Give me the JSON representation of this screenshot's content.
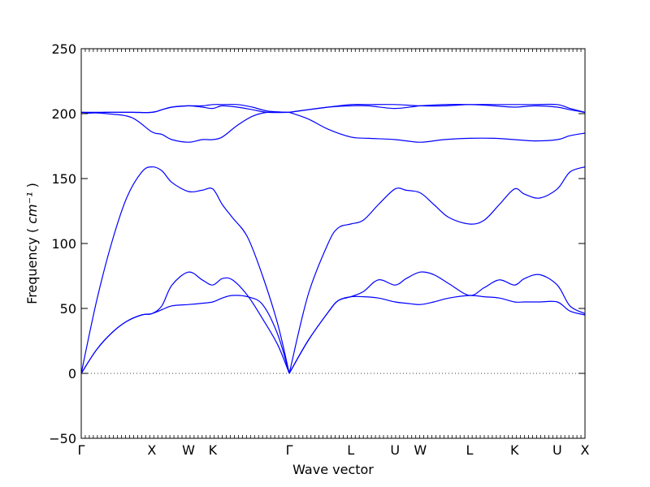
{
  "chart_data": {
    "type": "line",
    "xlabel": "Wave vector",
    "ylabel": "Frequency",
    "ylabel_unit": "cm⁻¹",
    "ylim": [
      -50,
      250
    ],
    "yticks": [
      -50,
      0,
      50,
      100,
      150,
      200,
      250
    ],
    "ytick_labels": [
      "−50",
      "0",
      "50",
      "100",
      "150",
      "200",
      "250"
    ],
    "xlim": [
      0,
      100
    ],
    "high_symmetry_points": [
      {
        "label": "Γ",
        "x": 0
      },
      {
        "label": "X",
        "x": 14.0
      },
      {
        "label": "W",
        "x": 21.3
      },
      {
        "label": "K",
        "x": 26.1
      },
      {
        "label": "Γ",
        "x": 41.3
      },
      {
        "label": "L",
        "x": 53.5
      },
      {
        "label": "U",
        "x": 62.3
      },
      {
        "label": "W",
        "x": 67.3
      },
      {
        "label": "L",
        "x": 77.1
      },
      {
        "label": "K",
        "x": 86.0
      },
      {
        "label": "U",
        "x": 94.5
      },
      {
        "label": "X",
        "x": 100
      }
    ],
    "zero_line": {
      "y": 0,
      "style": "dotted"
    },
    "line_color": "#0000ff",
    "grid": false,
    "series": [
      {
        "x": [
          0,
          3,
          6,
          9,
          12,
          14,
          16,
          18,
          21.3,
          24,
          26.1,
          28,
          30,
          33,
          36,
          39,
          41.3
        ],
        "values": [
          0,
          18,
          31,
          40,
          45,
          46,
          49,
          52,
          53,
          54,
          55,
          58,
          60,
          59,
          53,
          30,
          0
        ]
      },
      {
        "x": [
          0,
          3,
          6,
          9,
          12,
          14,
          16,
          18,
          21.3,
          24,
          26.1,
          28,
          30,
          33,
          36,
          39,
          41.3
        ],
        "values": [
          0,
          18,
          31,
          40,
          45,
          46,
          52,
          68,
          78,
          72,
          68,
          73,
          72,
          60,
          42,
          22,
          0
        ]
      },
      {
        "x": [
          0,
          3,
          6,
          9,
          12,
          14,
          16,
          18,
          21.3,
          24,
          26.1,
          28,
          30,
          33,
          36,
          39,
          41.3
        ],
        "values": [
          0,
          55,
          100,
          135,
          155,
          159,
          156,
          147,
          140,
          141,
          142,
          130,
          120,
          105,
          75,
          38,
          0
        ]
      },
      {
        "x": [
          0,
          5,
          10,
          14,
          16,
          18,
          21.3,
          24,
          26.1,
          28,
          31,
          34,
          37,
          41.3
        ],
        "values": [
          201,
          200,
          197,
          186,
          184,
          180,
          178,
          180,
          180,
          182,
          191,
          198,
          201,
          201
        ]
      },
      {
        "x": [
          0,
          5,
          10,
          14,
          16,
          18,
          21.3,
          24,
          26.1,
          28,
          31,
          34,
          37,
          41.3
        ],
        "values": [
          200,
          201,
          201,
          201,
          203,
          205,
          206,
          205,
          204,
          206,
          205,
          203,
          201,
          201
        ]
      },
      {
        "x": [
          0,
          5,
          10,
          14,
          16,
          18,
          21.3,
          24,
          26.1,
          28,
          31,
          34,
          37,
          41.3
        ],
        "values": [
          201,
          201,
          201,
          201,
          203,
          205,
          206,
          206,
          207,
          207,
          207,
          205,
          202,
          201
        ]
      },
      {
        "x": [
          41.3,
          45,
          49,
          51,
          53.5,
          56,
          59,
          62.3,
          64.5,
          67.3,
          70,
          73,
          77.1,
          80,
          83,
          86,
          88,
          91,
          94.5,
          97,
          100
        ],
        "values": [
          0,
          25,
          47,
          56,
          59,
          59,
          58,
          55,
          54,
          53,
          55,
          58,
          60,
          59,
          58,
          55,
          55,
          55,
          55,
          48,
          45
        ]
      },
      {
        "x": [
          41.3,
          45,
          49,
          51,
          53.5,
          56,
          59,
          62.3,
          64.5,
          67.3,
          70,
          73,
          77.1,
          80,
          83,
          86,
          88,
          91,
          94.5,
          97,
          100
        ],
        "values": [
          0,
          25,
          47,
          56,
          59,
          63,
          72,
          68,
          73,
          78,
          76,
          69,
          60,
          66,
          72,
          68,
          73,
          76,
          68,
          52,
          46
        ]
      },
      {
        "x": [
          41.3,
          45,
          49,
          51,
          53.5,
          56,
          59,
          62.3,
          64.5,
          67.3,
          70,
          73,
          77.1,
          80,
          83,
          86,
          88,
          91,
          94.5,
          97,
          100
        ],
        "values": [
          0,
          60,
          100,
          112,
          115,
          118,
          130,
          142,
          141,
          139,
          130,
          120,
          115,
          118,
          130,
          142,
          138,
          135,
          142,
          155,
          159
        ]
      },
      {
        "x": [
          41.3,
          45,
          49,
          53.5,
          57,
          62.3,
          67.3,
          72,
          77.1,
          82,
          86,
          90,
          94.5,
          97,
          100
        ],
        "values": [
          201,
          196,
          188,
          182,
          181,
          180,
          178,
          180,
          181,
          181,
          180,
          179,
          180,
          183,
          185
        ]
      },
      {
        "x": [
          41.3,
          45,
          49,
          53.5,
          57,
          62.3,
          67.3,
          72,
          77.1,
          82,
          86,
          90,
          94.5,
          97,
          100
        ],
        "values": [
          201,
          203,
          205,
          206,
          206,
          204,
          206,
          207,
          207,
          206,
          205,
          206,
          205,
          203,
          201
        ]
      },
      {
        "x": [
          41.3,
          45,
          49,
          53.5,
          57,
          62.3,
          67.3,
          72,
          77.1,
          82,
          86,
          90,
          94.5,
          97,
          100
        ],
        "values": [
          201,
          203,
          205,
          207,
          207,
          207,
          206,
          206,
          207,
          207,
          207,
          207,
          207,
          204,
          201
        ]
      }
    ]
  }
}
